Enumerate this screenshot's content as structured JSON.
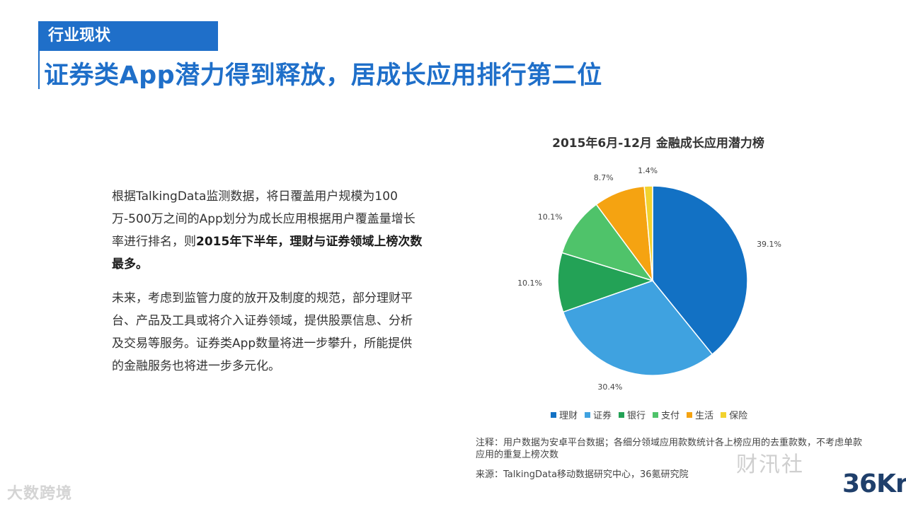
{
  "header": {
    "tag": "行业现状",
    "headline": "证券类App潜力得到释放，居成长应用排行第二位"
  },
  "body": {
    "p1_a": "根据TalkingData监测数据，将日覆盖用户规模为100万-500万之间的App划分为成长应用根据用户覆盖量增长率进行排名，则",
    "p1_b": "2015年下半年，理财与证券领域上榜次数最多。",
    "p2": "未来，考虑到监管力度的放开及制度的规范，部分理财平台、产品及工具或将介入证券领域，提供股票信息、分析及交易等服务。证券类App数量将进一步攀升，所能提供的金融服务也将进一步多元化。"
  },
  "chart_data": {
    "type": "pie",
    "title": "2015年6月-12月  金融成长应用潜力榜",
    "slices": [
      {
        "name": "理财",
        "value": 39.1,
        "label": "39.1%",
        "color": "#1271c4"
      },
      {
        "name": "证券",
        "value": 30.4,
        "label": "30.4%",
        "color": "#3fa2e0"
      },
      {
        "name": "银行",
        "value": 10.1,
        "label": "10.1%",
        "color": "#23a256"
      },
      {
        "name": "支付",
        "value": 10.1,
        "label": "10.1%",
        "color": "#4fc36a"
      },
      {
        "name": "生活",
        "value": 8.7,
        "label": "8.7%",
        "color": "#f5a311"
      },
      {
        "name": "保险",
        "value": 1.4,
        "label": "1.4%",
        "color": "#f2d22e"
      }
    ],
    "legend_position": "bottom"
  },
  "footer": {
    "note": "注释：用户数据为安卓平台数据；各细分领域应用款数统计各上榜应用的去重款数，不考虑单款应用的重复上榜次数",
    "source": "来源：TalkingData移动数据研究中心，36氪研究院"
  },
  "watermarks": {
    "left": "大数跨境",
    "right": "财汛社",
    "logo": "36Kr"
  }
}
